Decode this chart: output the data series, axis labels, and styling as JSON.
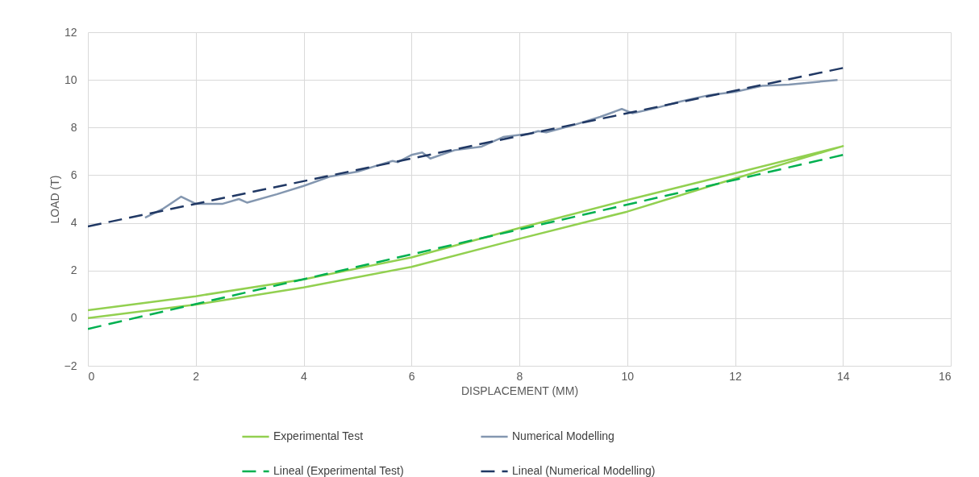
{
  "chart_data": {
    "type": "line",
    "xlabel": "DISPLACEMENT (MM)",
    "ylabel": "LOAD (T)",
    "xlim": [
      0,
      16
    ],
    "xticks": [
      0,
      2,
      4,
      6,
      8,
      10,
      12,
      14,
      16
    ],
    "ylim": [
      -2,
      12
    ],
    "yticks": [
      -2,
      0,
      2,
      4,
      6,
      8,
      10,
      12
    ],
    "grid": true,
    "legend": "bottom",
    "line_style": "solid",
    "series": [
      {
        "name": "Experimental Test",
        "color": "#92d050",
        "x": [
          0,
          2,
          4,
          6,
          8,
          10,
          12,
          14,
          12,
          10,
          8,
          6,
          4,
          2,
          0
        ],
        "values": [
          0,
          0.57,
          1.29,
          2.15,
          3.33,
          4.47,
          5.86,
          7.22,
          6.08,
          4.96,
          3.78,
          2.55,
          1.63,
          0.92,
          0.33
        ]
      },
      {
        "name": "Numerical Modelling",
        "color": "#8497b0",
        "x": [
          1.06,
          1.4,
          1.73,
          2.0,
          2.5,
          2.8,
          2.95,
          3.5,
          4,
          4.5,
          5,
          5.5,
          5.65,
          5.75,
          6,
          6.2,
          6.35,
          6.8,
          7.3,
          7.7,
          8.2,
          8.35,
          8.5,
          9,
          9.5,
          9.9,
          10.1,
          10.5,
          11,
          11.5,
          12,
          12.5,
          13,
          13.9
        ],
        "values": [
          4.22,
          4.6,
          5.1,
          4.8,
          4.8,
          5.0,
          4.85,
          5.2,
          5.55,
          5.95,
          6.15,
          6.5,
          6.6,
          6.55,
          6.85,
          6.95,
          6.7,
          7.05,
          7.2,
          7.6,
          7.75,
          7.85,
          7.8,
          8.1,
          8.45,
          8.78,
          8.6,
          8.8,
          9.1,
          9.35,
          9.5,
          9.75,
          9.8,
          10.0
        ]
      },
      {
        "name": "Lineal (Experimental Test)",
        "color": "#00b050",
        "type": "line",
        "line_style": "dashed",
        "x": [
          0,
          14
        ],
        "values": [
          -0.45,
          6.85
        ]
      },
      {
        "name": "Lineal (Numerical Modelling)",
        "color": "#203864",
        "type": "line",
        "line_style": "dashed",
        "x": [
          0,
          14
        ],
        "values": [
          3.85,
          10.5
        ]
      }
    ]
  }
}
